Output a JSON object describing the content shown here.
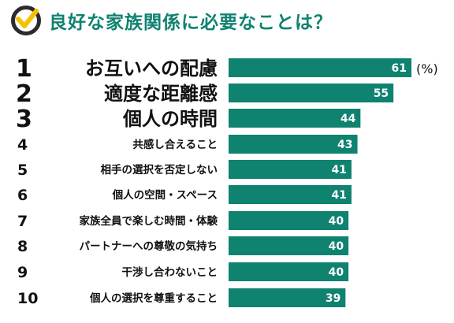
{
  "header": {
    "title": "良好な家族関係に必要なことは？"
  },
  "colors": {
    "bar": "#0f8270",
    "title": "#0f8270",
    "check": "#f2c300",
    "circle": "#2b2b2b"
  },
  "icons": {
    "header": "check-circle-icon"
  },
  "chart_data": {
    "type": "bar",
    "orientation": "horizontal",
    "unit_label": "(%)",
    "categories": [
      "お互いへの配慮",
      "適度な距離感",
      "個人の時間",
      "共感し合えること",
      "相手の選択を否定しない",
      "個人の空間・スペース",
      "家族全員で楽しむ時間・体験",
      "パートナーへの尊敬の気持ち",
      "干渉し合わないこと",
      "個人の選択を尊重すること"
    ],
    "ranks": [
      "1",
      "2",
      "3",
      "4",
      "5",
      "6",
      "7",
      "8",
      "9",
      "10"
    ],
    "values": [
      61,
      55,
      44,
      43,
      41,
      41,
      40,
      40,
      40,
      39
    ],
    "xlim": [
      0,
      61
    ],
    "grid": false
  }
}
